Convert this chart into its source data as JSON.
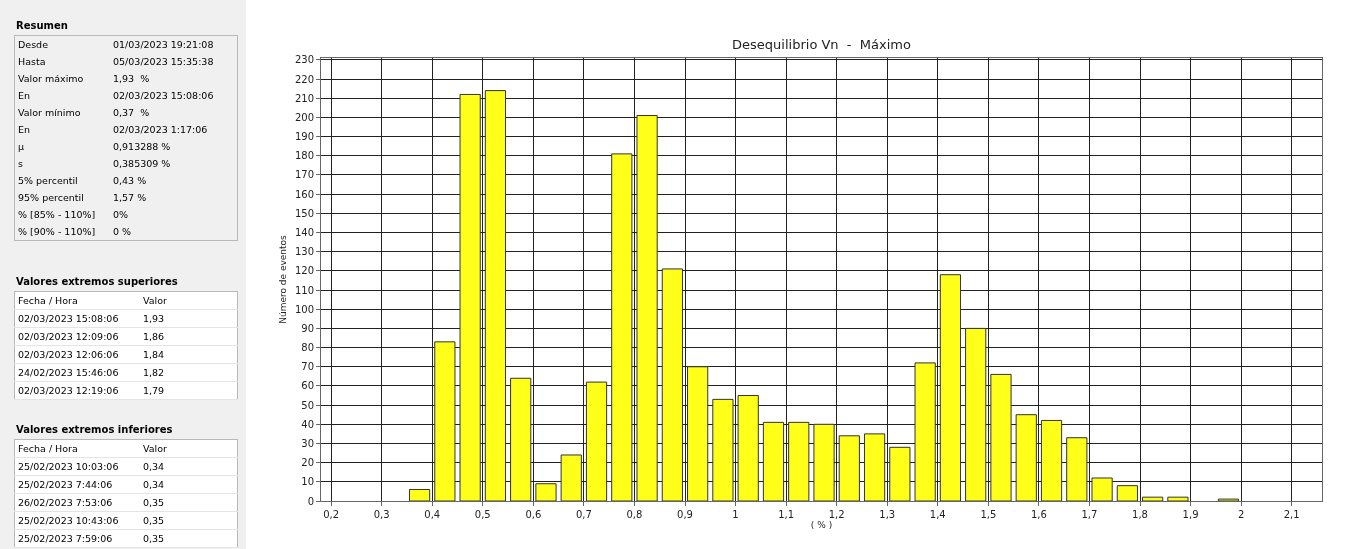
{
  "chart_data": [
    {
      "type": "other",
      "title": "Resumen",
      "annotations": [
        "Desde",
        "01/03/2023 19:21:08",
        "Hasta",
        "05/03/2023 15:35:38",
        "Valor máximo",
        "1,93  %",
        "En",
        "02/03/2023 15:08:06",
        "Valor mínimo",
        "0,37  %",
        "En",
        "02/03/2023 1:17:06",
        "μ",
        "0,913288 %",
        "s",
        "0,385309 %",
        "5% percentil",
        "0,43 %",
        "95% percentil",
        "1,57 %",
        "% [85% - 110%]",
        "0%",
        "% [90% - 110%]",
        "0 %"
      ]
    },
    {
      "type": "other",
      "title": "Valores extremos superiores",
      "annotations": [
        "Fecha / Hora",
        "Valor",
        "02/03/2023 15:08:06",
        "1,93",
        "02/03/2023 12:09:06",
        "1,86",
        "02/03/2023 12:06:06",
        "1,84",
        "24/02/2023 15:46:06",
        "1,82",
        "02/03/2023 12:19:06",
        "1,79"
      ]
    },
    {
      "type": "other",
      "title": "Valores extremos inferiores",
      "annotations": [
        "Fecha / Hora",
        "Valor",
        "25/02/2023 10:03:06",
        "0,34",
        "25/02/2023 7:44:06",
        "0,34",
        "26/02/2023 7:53:06",
        "0,35",
        "25/02/2023 10:43:06",
        "0,35",
        "25/02/2023 7:59:06",
        "0,35"
      ]
    },
    {
      "type": "histogram",
      "title": "Desequilibrio Vn  -  Máximo",
      "xlabel": "( % )",
      "ylabel": "Número de eventos",
      "color": "#ffff1a",
      "bins": [
        0.35,
        0.4,
        0.45,
        0.5,
        0.55,
        0.6,
        0.65,
        0.7,
        0.75,
        0.8,
        0.85,
        0.9,
        0.95,
        1.0,
        1.05,
        1.1,
        1.15,
        1.2,
        1.25,
        1.3,
        1.35,
        1.4,
        1.45,
        1.5,
        1.55,
        1.6,
        1.65,
        1.7,
        1.75,
        1.8,
        1.85,
        1.9,
        1.95,
        2.0
      ],
      "values": [
        6,
        83,
        212,
        214,
        64,
        9,
        24,
        62,
        181,
        201,
        121,
        70,
        53,
        55,
        41,
        41,
        40,
        34,
        35,
        28,
        72,
        118,
        90,
        66,
        45,
        42,
        33,
        12,
        8,
        2,
        2,
        0,
        1
      ],
      "xlim": [
        0.18,
        2.16
      ],
      "xticks": [
        {
          "value": 0.2,
          "label": "0,2"
        },
        {
          "value": 0.3,
          "label": "0,3"
        },
        {
          "value": 0.4,
          "label": "0,4"
        },
        {
          "value": 0.5,
          "label": "0,5"
        },
        {
          "value": 0.6,
          "label": "0,6"
        },
        {
          "value": 0.7,
          "label": "0,7"
        },
        {
          "value": 0.8,
          "label": "0,8"
        },
        {
          "value": 0.9,
          "label": "0,9"
        },
        1,
        {
          "value": 1.1,
          "label": "1,1"
        },
        {
          "value": 1.2,
          "label": "1,2"
        },
        {
          "value": 1.3,
          "label": "1,3"
        },
        {
          "value": 1.4,
          "label": "1,4"
        },
        {
          "value": 1.5,
          "label": "1,5"
        },
        {
          "value": 1.6,
          "label": "1,6"
        },
        {
          "value": 1.7,
          "label": "1,7"
        },
        {
          "value": 1.8,
          "label": "1,8"
        },
        {
          "value": 1.9,
          "label": "1,9"
        },
        2,
        {
          "value": 2.1,
          "label": "2,1"
        }
      ],
      "ylim": [
        0,
        231
      ],
      "yticks": [
        0,
        10,
        20,
        30,
        40,
        50,
        60,
        70,
        80,
        90,
        100,
        110,
        120,
        130,
        140,
        150,
        160,
        170,
        180,
        190,
        200,
        210,
        220,
        230
      ],
      "grid": true
    }
  ]
}
